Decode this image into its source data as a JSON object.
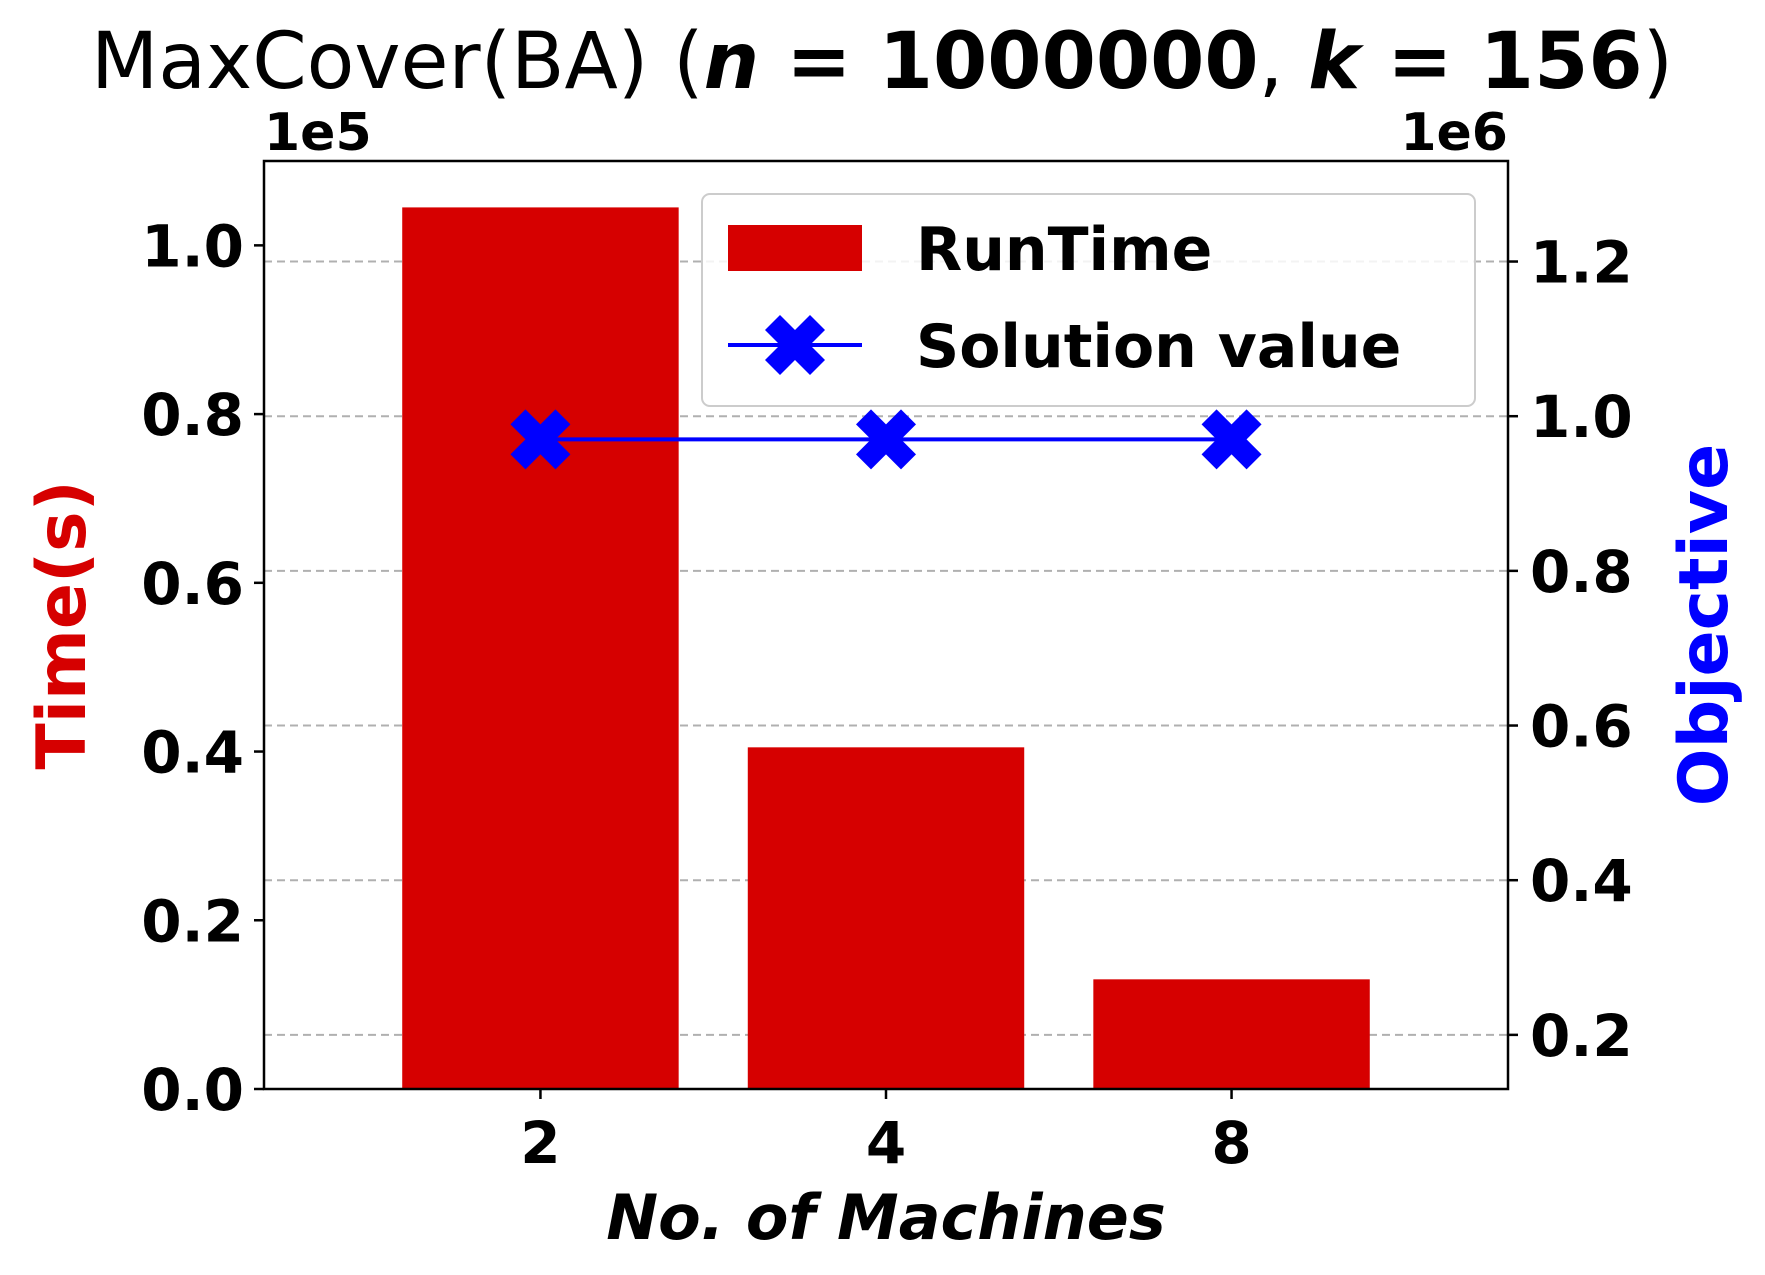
{
  "chart_data": {
    "type": "bar",
    "title": {
      "prefix": "MaxCover(BA) (",
      "n_var": "n",
      "n_value": " = 1000000",
      "separator": ", ",
      "k_var": "k",
      "k_value": " = 156",
      "suffix": ")"
    },
    "xlabel": "No. of Machines",
    "ylabel_left": "Time(s)",
    "ylabel_right": "Objective",
    "left_multiplier": "1e5",
    "right_multiplier": "1e6",
    "categories": [
      "2",
      "4",
      "8"
    ],
    "left_axis": {
      "ylim": [
        0,
        1.1
      ],
      "ticks": [
        0.0,
        0.2,
        0.4,
        0.6,
        0.8,
        1.0
      ],
      "tick_labels": [
        "0.0",
        "0.2",
        "0.4",
        "0.6",
        "0.8",
        "1.0"
      ]
    },
    "right_axis": {
      "ylim": [
        0.13,
        1.33
      ],
      "ticks": [
        0.2,
        0.4,
        0.6,
        0.8,
        1.0,
        1.2
      ],
      "tick_labels": [
        "0.2",
        "0.4",
        "0.6",
        "0.8",
        "1.0",
        "1.2"
      ]
    },
    "grid": "dashed, right-axis ticks",
    "legend_position": "top-right",
    "series": [
      {
        "name": "RunTime",
        "kind": "bar",
        "axis": "left",
        "color": "#d60000",
        "values": [
          1.045,
          0.405,
          0.13
        ]
      },
      {
        "name": "Solution value",
        "kind": "line",
        "marker": "x",
        "axis": "right",
        "color": "#0000ff",
        "values": [
          0.97,
          0.97,
          0.97
        ]
      }
    ]
  },
  "colors": {
    "time_label": "#d60000",
    "objective_label": "#0000ff",
    "grid": "#b0b0b0",
    "legend_border": "#cccccc"
  }
}
